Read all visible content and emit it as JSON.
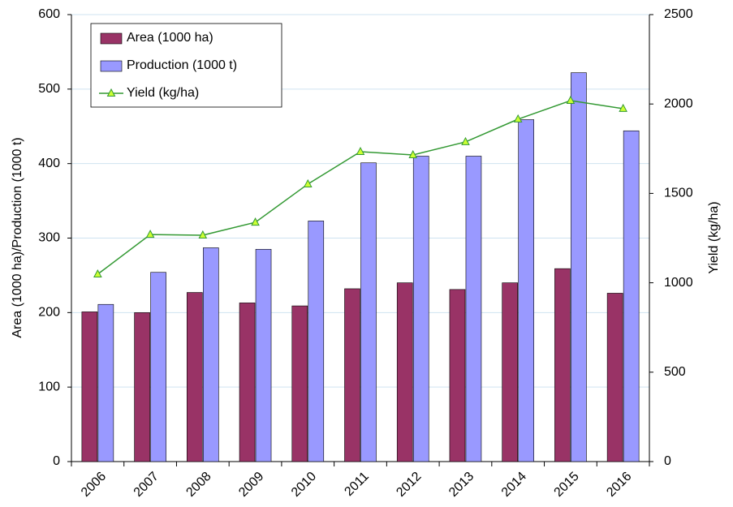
{
  "chart_data": {
    "type": "bar",
    "y_label": "Area (1000 ha)/Production (1000 t)",
    "y2_label": "Yield (kg/ha)",
    "categories": [
      "2006",
      "2007",
      "2008",
      "2009",
      "2010",
      "2011",
      "2012",
      "2013",
      "2014",
      "2015",
      "2016"
    ],
    "series": [
      {
        "name": "Area (1000 ha)",
        "color": "#993366",
        "type": "bar",
        "values": [
          201,
          200,
          227,
          213,
          209,
          232,
          240,
          231,
          240,
          259,
          226
        ]
      },
      {
        "name": "Production (1000 t)",
        "color": "#9999ff",
        "type": "bar",
        "values": [
          211,
          254,
          287,
          285,
          323,
          401,
          410,
          410,
          459,
          522,
          444
        ]
      },
      {
        "name": "Yield (kg/ha)",
        "color": "#339933",
        "type": "line",
        "axis": "y2",
        "values": [
          1048,
          1270,
          1266,
          1338,
          1552,
          1733,
          1715,
          1788,
          1915,
          2019,
          1974
        ]
      }
    ],
    "ylim": [
      0,
      600
    ],
    "yticks": [
      0,
      100,
      200,
      300,
      400,
      500,
      600
    ],
    "y2lim": [
      0,
      2500
    ],
    "y2ticks": [
      0,
      500,
      1000,
      1500,
      2000,
      2500
    ],
    "grid": true,
    "legend": "upper left"
  }
}
